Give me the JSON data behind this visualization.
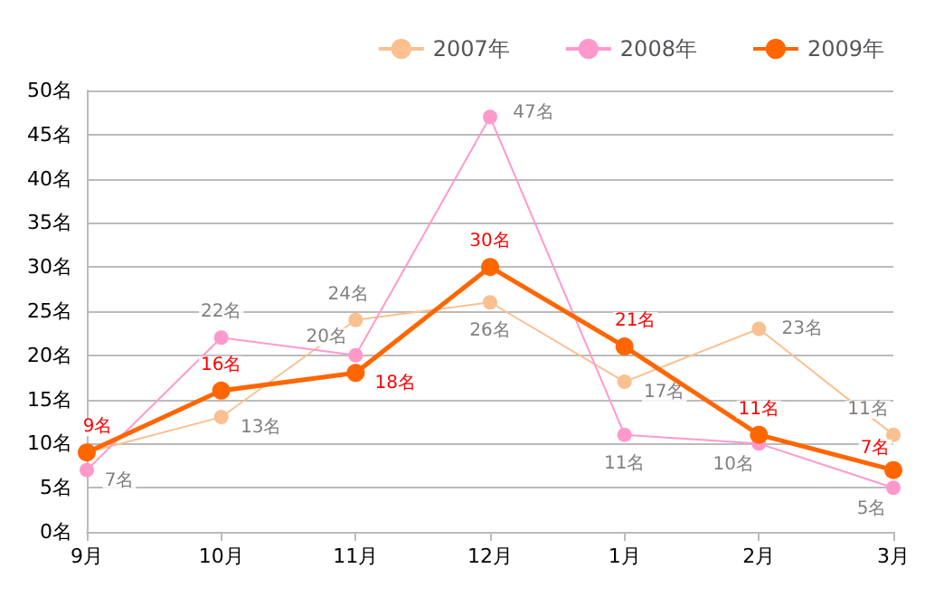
{
  "chart_data": {
    "type": "line",
    "categories": [
      "9月",
      "10月",
      "11月",
      "12月",
      "1月",
      "2月",
      "3月"
    ],
    "series": [
      {
        "name": "2007年",
        "color": "#fac090",
        "values": [
          9,
          13,
          24,
          26,
          17,
          23,
          11
        ],
        "value_labels": [
          null,
          "13名",
          "24名",
          "26名",
          "17名",
          "23名",
          "11名"
        ]
      },
      {
        "name": "2008年",
        "color": "#ff99cc",
        "values": [
          7,
          22,
          20,
          47,
          11,
          10,
          5
        ],
        "value_labels": [
          "7名",
          "22名",
          "20名",
          "47名",
          "11名",
          "10名",
          "5名"
        ]
      },
      {
        "name": "2009年",
        "color": "#ff6600",
        "values": [
          9,
          16,
          18,
          30,
          21,
          11,
          7
        ],
        "value_labels": [
          "9名",
          "16名",
          "18名",
          "30名",
          "21名",
          "11名",
          "7名"
        ]
      }
    ],
    "ylim": [
      0,
      50
    ],
    "yticks": [
      {
        "value": 0,
        "label": "0名"
      },
      {
        "value": 5,
        "label": "5名"
      },
      {
        "value": 10,
        "label": "10名"
      },
      {
        "value": 15,
        "label": "15名"
      },
      {
        "value": 20,
        "label": "20名"
      },
      {
        "value": 25,
        "label": "25名"
      },
      {
        "value": 30,
        "label": "30名"
      },
      {
        "value": 35,
        "label": "35名"
      },
      {
        "value": 40,
        "label": "40名"
      },
      {
        "value": 45,
        "label": "45名"
      },
      {
        "value": 50,
        "label": "50名"
      }
    ],
    "grid": "y",
    "legend": "top right",
    "marker": "circle",
    "line_style": "solid"
  }
}
